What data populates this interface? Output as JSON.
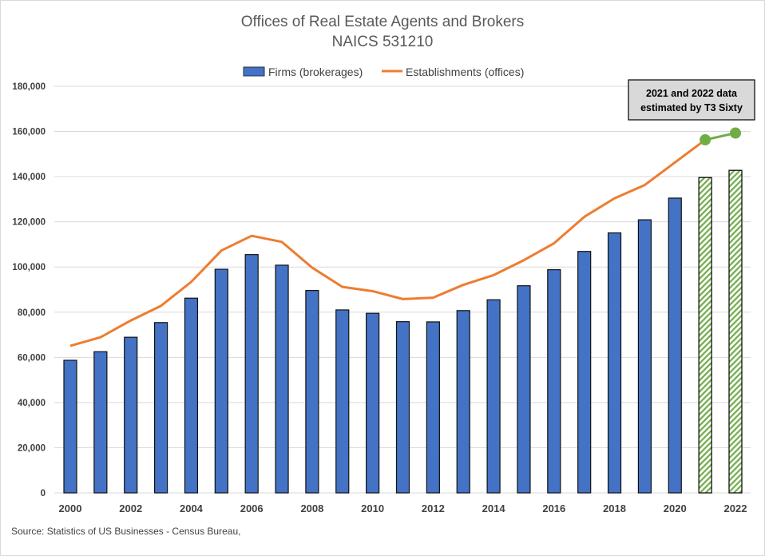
{
  "chart_data": {
    "type": "bar",
    "title": "Offices of Real Estate Agents and Brokers",
    "subtitle": "NAICS 531210",
    "categories": [
      "2000",
      "2001",
      "2002",
      "2003",
      "2004",
      "2005",
      "2006",
      "2007",
      "2008",
      "2009",
      "2010",
      "2011",
      "2012",
      "2013",
      "2014",
      "2015",
      "2016",
      "2017",
      "2018",
      "2019",
      "2020",
      "2021",
      "2022"
    ],
    "x_tick_labels": [
      "2000",
      "2002",
      "2004",
      "2006",
      "2008",
      "2010",
      "2012",
      "2014",
      "2016",
      "2018",
      "2020",
      "2022"
    ],
    "y_tick_labels": [
      "0",
      "20,000",
      "40,000",
      "60,000",
      "80,000",
      "100,000",
      "120,000",
      "140,000",
      "160,000",
      "180,000"
    ],
    "ylim": [
      0,
      180000
    ],
    "grid": true,
    "legend_position": "top",
    "series": [
      {
        "name": "Firms (brokerages)",
        "type": "bar",
        "color": "#4472c4",
        "values": [
          58700,
          62500,
          68900,
          75400,
          86200,
          99000,
          105500,
          100800,
          89600,
          81000,
          79500,
          75800,
          75700,
          80700,
          85500,
          91700,
          98800,
          106900,
          115100,
          120900,
          130500,
          139600,
          142800
        ],
        "estimated_fill": "#70ad47",
        "estimated_from": "2021"
      },
      {
        "name": "Establishments (offices)",
        "type": "line",
        "color": "#ed7d31",
        "values": [
          65100,
          68900,
          76300,
          82800,
          93400,
          107300,
          113800,
          111100,
          99700,
          91200,
          89300,
          85800,
          86400,
          92100,
          96400,
          103000,
          110500,
          122200,
          130400,
          136300,
          146300,
          156300,
          159300
        ],
        "estimated_color": "#70ad47",
        "estimated_from": "2021"
      }
    ],
    "annotation": [
      "2021 and 2022 data",
      "estimated by T3 Sixty"
    ],
    "source": "Source: Statistics of US Businesses  - Census Bureau,"
  }
}
